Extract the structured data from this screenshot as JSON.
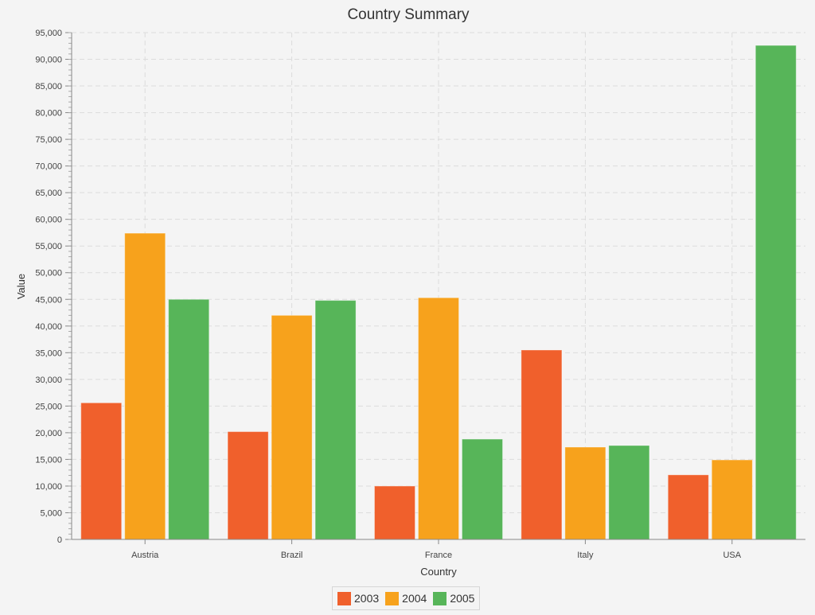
{
  "chart_data": {
    "type": "bar",
    "title": "Country Summary",
    "xlabel": "Country",
    "ylabel": "Value",
    "ylim": [
      0,
      95000
    ],
    "ytick_step": 5000,
    "grid": true,
    "legend": "bottom-center",
    "categories": [
      "Austria",
      "Brazil",
      "France",
      "Italy",
      "USA"
    ],
    "series": [
      {
        "name": "2003",
        "color": "#f0602c",
        "values": [
          25600,
          20200,
          10000,
          35500,
          12100
        ]
      },
      {
        "name": "2004",
        "color": "#f7a21c",
        "values": [
          57400,
          42000,
          45300,
          17300,
          14900
        ]
      },
      {
        "name": "2005",
        "color": "#57b559",
        "values": [
          45000,
          44800,
          18800,
          17600,
          92600
        ]
      }
    ]
  }
}
